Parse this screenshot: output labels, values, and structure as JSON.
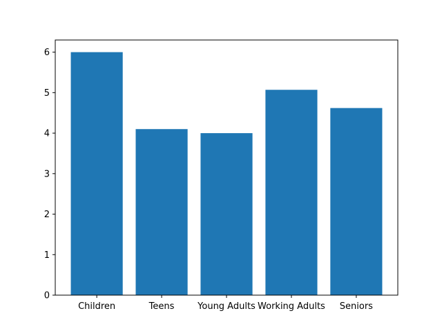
{
  "chart_data": {
    "type": "bar",
    "categories": [
      "Children",
      "Teens",
      "Young Adults",
      "Working Adults",
      "Seniors"
    ],
    "values": [
      6.0,
      4.1,
      4.0,
      5.07,
      4.62
    ],
    "ylim": [
      0,
      6.3
    ],
    "yticks": [
      "0",
      "1",
      "2",
      "3",
      "4",
      "5",
      "6"
    ],
    "bar_color": "#1f77b4",
    "grid": false
  }
}
